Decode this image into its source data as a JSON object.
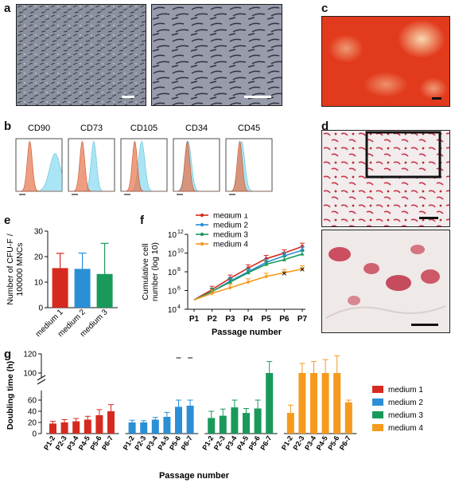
{
  "panel_labels": [
    "a",
    "b",
    "c",
    "d",
    "e",
    "f",
    "g"
  ],
  "flow_markers": [
    "CD90",
    "CD73",
    "CD105",
    "CD34",
    "CD45"
  ],
  "colors": {
    "medium_1": "#d62a1e",
    "medium_2": "#2b8fd6",
    "medium_3": "#1a9a5a",
    "medium_4": "#f59a1e",
    "flow_control": "#e8734a",
    "flow_marker": "#6fd3ec",
    "alizarin": "#e8371f",
    "oilred": "#c42a3a"
  },
  "chart_data": [
    {
      "id": "e",
      "type": "bar",
      "ylabel_lines": [
        "Number of CFU-F /",
        "100000 MNCs"
      ],
      "categories": [
        "medium 1",
        "medium 2",
        "medium 3"
      ],
      "values": [
        15.5,
        15.2,
        13.2
      ],
      "errors": [
        5.8,
        6.2,
        12.0
      ],
      "ylim": [
        0,
        30
      ],
      "yticks": [
        "0",
        "10",
        "20",
        "30"
      ],
      "legend": "none"
    },
    {
      "id": "f",
      "type": "line",
      "ylabel_lines": [
        "Cumulative cell",
        "number (log 10)"
      ],
      "xlabel": "Passage number",
      "categories": [
        "P1",
        "P2",
        "P3",
        "P4",
        "P5",
        "P6",
        "P7"
      ],
      "log_scale": true,
      "ylim_exp": [
        4,
        12
      ],
      "yticks": [
        {
          "base": "10",
          "exp": "4"
        },
        {
          "base": "10",
          "exp": "6"
        },
        {
          "base": "10",
          "exp": "8"
        },
        {
          "base": "10",
          "exp": "10"
        },
        {
          "base": "10",
          "exp": "12"
        }
      ],
      "legend": "top-left",
      "series": [
        {
          "name": "medium 1",
          "log_values": [
            5.0,
            6.1,
            7.3,
            8.4,
            9.4,
            10.0,
            10.7
          ],
          "marker": "circle"
        },
        {
          "name": "medium 2",
          "log_values": [
            5.0,
            5.9,
            7.0,
            8.0,
            9.0,
            9.7,
            10.3
          ],
          "marker": "square"
        },
        {
          "name": "medium 3",
          "log_values": [
            5.0,
            5.9,
            6.9,
            7.9,
            8.8,
            9.3,
            9.9
          ],
          "marker": "triangle"
        },
        {
          "name": "medium 4",
          "log_values": [
            5.0,
            5.7,
            6.3,
            6.9,
            7.5,
            7.9,
            8.3
          ],
          "marker": "diamond"
        }
      ],
      "end_markers": [
        "×",
        "×"
      ]
    },
    {
      "id": "g",
      "type": "bar",
      "ylabel": "Doubling time (h)",
      "xlabel": "Passage number",
      "categories": [
        "P1-2",
        "P2-3",
        "P3-4",
        "P4-5",
        "P5-6",
        "P6-7"
      ],
      "yticks": [
        "0",
        "20",
        "40",
        "60",
        "100",
        "120"
      ],
      "broken_axis": true,
      "legend": "right",
      "series": [
        {
          "name": "medium 1",
          "values": [
            18,
            20,
            22,
            25,
            33,
            40
          ],
          "errors": [
            4,
            5,
            5,
            6,
            10,
            12
          ]
        },
        {
          "name": "medium 2",
          "values": [
            20,
            20,
            25,
            30,
            48,
            50
          ],
          "errors": [
            4,
            3,
            4,
            8,
            12,
            14
          ]
        },
        {
          "name": "medium 3",
          "values": [
            28,
            32,
            47,
            37,
            45,
            98
          ],
          "errors": [
            12,
            12,
            14,
            8,
            18,
            14
          ]
        },
        {
          "name": "medium 4",
          "values": [
            37,
            98,
            98,
            100,
            100,
            56
          ],
          "errors": [
            14,
            12,
            14,
            14,
            18,
            8
          ]
        }
      ]
    }
  ]
}
